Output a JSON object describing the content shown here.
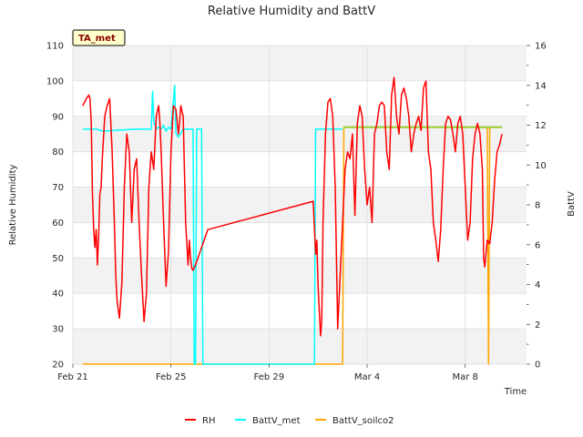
{
  "chart_data": {
    "type": "line",
    "title": "Relative Humidity and BattV",
    "badge": "TA_met",
    "xlabel": "Time",
    "ylabel": "Relative Humidity",
    "y2label": "BattV",
    "xlim": [
      0,
      18.5
    ],
    "ylim": [
      20,
      110
    ],
    "y2lim": [
      0,
      16
    ],
    "x_ticks": [
      {
        "value": 0,
        "label": "Feb 21"
      },
      {
        "value": 4,
        "label": "Feb 25"
      },
      {
        "value": 8,
        "label": "Feb 29"
      },
      {
        "value": 12,
        "label": "Mar 4"
      },
      {
        "value": 16,
        "label": "Mar 8"
      }
    ],
    "y_ticks": [
      20,
      30,
      40,
      50,
      60,
      70,
      80,
      90,
      100,
      110
    ],
    "y2_ticks": [
      0,
      2,
      4,
      6,
      8,
      10,
      12,
      14,
      16
    ],
    "legend_position": "bottom-center",
    "colors": {
      "RH": "#ff0000",
      "BattV_met": "#00ffff",
      "BattV_soilco2": "#ffa500",
      "BattV_extra": "#9acd32",
      "band": "#f2f2f2",
      "grid": "#dcdcdc"
    },
    "series": [
      {
        "name": "RH",
        "axis": "left",
        "x": [
          0.4,
          0.55,
          0.65,
          0.7,
          0.75,
          0.8,
          0.85,
          0.9,
          0.95,
          1.0,
          1.05,
          1.1,
          1.15,
          1.2,
          1.3,
          1.4,
          1.5,
          1.6,
          1.7,
          1.75,
          1.8,
          1.9,
          2.0,
          2.1,
          2.2,
          2.3,
          2.4,
          2.5,
          2.6,
          2.7,
          2.8,
          2.9,
          3.0,
          3.05,
          3.1,
          3.2,
          3.3,
          3.4,
          3.5,
          3.55,
          3.6,
          3.7,
          3.8,
          3.9,
          4.0,
          4.1,
          4.2,
          4.3,
          4.35,
          4.4,
          4.5,
          4.6,
          4.7,
          4.75,
          4.8,
          4.85,
          4.9,
          5.0,
          5.1,
          5.2,
          5.3,
          5.4,
          5.5,
          9.8,
          9.9,
          9.95,
          10.0,
          10.1,
          10.15,
          10.2,
          10.3,
          10.4,
          10.5,
          10.6,
          10.7,
          10.8,
          10.9,
          11.0,
          11.1,
          11.2,
          11.3,
          11.4,
          11.5,
          11.6,
          11.7,
          11.8,
          11.9,
          12.0,
          12.1,
          12.2,
          12.3,
          12.4,
          12.5,
          12.6,
          12.7,
          12.8,
          12.9,
          13.0,
          13.1,
          13.2,
          13.3,
          13.4,
          13.5,
          13.6,
          13.7,
          13.8,
          13.9,
          14.0,
          14.1,
          14.2,
          14.3,
          14.4,
          14.5,
          14.6,
          14.7,
          14.8,
          14.9,
          15.0,
          15.1,
          15.2,
          15.3,
          15.4,
          15.5,
          15.6,
          15.7,
          15.8,
          15.9,
          16.0,
          16.1,
          16.2,
          16.3,
          16.4,
          16.5,
          16.6,
          16.7,
          16.75,
          16.8,
          16.9,
          17.0,
          17.1,
          17.2,
          17.3,
          17.4,
          17.5
        ],
        "y": [
          93,
          95,
          96,
          95,
          88,
          68,
          58,
          53,
          58,
          48,
          56,
          68,
          70,
          78,
          90,
          93,
          95,
          80,
          58,
          45,
          38,
          33,
          43,
          70,
          85,
          80,
          60,
          75,
          78,
          60,
          45,
          32,
          40,
          55,
          70,
          80,
          75,
          90,
          93,
          88,
          80,
          60,
          42,
          52,
          80,
          93,
          92,
          85,
          88,
          93,
          90,
          60,
          48,
          55,
          50,
          47,
          46.5,
          48,
          50,
          52,
          54,
          56,
          58,
          66,
          51,
          55,
          42,
          28,
          32,
          60,
          85,
          94,
          95,
          90,
          70,
          30,
          45,
          60,
          75,
          80,
          78,
          85,
          62,
          88,
          93,
          90,
          75,
          65,
          70,
          60,
          85,
          88,
          93,
          94,
          93,
          80,
          75,
          96,
          101,
          90,
          85,
          96,
          98,
          95,
          90,
          80,
          85,
          88,
          90,
          86,
          98,
          100,
          80,
          75,
          60,
          55,
          49,
          58,
          75,
          88,
          90,
          89,
          85,
          80,
          88,
          90,
          85,
          70,
          55,
          60,
          78,
          85,
          88,
          85,
          75,
          50,
          47.5,
          55,
          54,
          60,
          72,
          80,
          82,
          85
        ]
      },
      {
        "name": "BattV_met",
        "axis": "right",
        "x": [
          0.4,
          1.0,
          1.2,
          2.5,
          3.2,
          3.25,
          3.3,
          3.4,
          3.5,
          3.6,
          3.7,
          3.8,
          3.9,
          4.0,
          4.15,
          4.2,
          4.3,
          4.5,
          4.7,
          4.8,
          4.85,
          4.9,
          4.95,
          5.0,
          5.05,
          5.1,
          5.15,
          5.2,
          5.25,
          5.3,
          5.35,
          9.8,
          9.85,
          9.9,
          10.0,
          11.0
        ],
        "y": [
          11.8,
          11.8,
          11.7,
          11.8,
          11.8,
          13.7,
          12.2,
          11.8,
          11.9,
          11.8,
          12.0,
          11.7,
          11.9,
          11.8,
          14.0,
          11.6,
          11.4,
          11.8,
          11.8,
          11.8,
          11.8,
          11.8,
          0,
          0,
          11.8,
          11.8,
          11.8,
          11.8,
          11.8,
          0,
          0,
          0,
          0,
          11.8,
          11.8,
          11.8
        ]
      },
      {
        "name": "BattV_soilco2",
        "axis": "right",
        "x": [
          0.4,
          10.9,
          11.0,
          11.05,
          12.0,
          14.0,
          16.0,
          16.9,
          16.95,
          17.0,
          17.5
        ],
        "y": [
          0,
          0,
          0,
          11.9,
          11.9,
          11.9,
          11.9,
          11.9,
          0,
          11.9,
          11.9
        ]
      },
      {
        "name": "BattV_extra",
        "axis": "right",
        "x": [
          11.05,
          12.0,
          13.0,
          14.0,
          15.0,
          16.0,
          16.5,
          16.9,
          17.0,
          17.5
        ],
        "y": [
          11.9,
          11.9,
          11.9,
          11.9,
          11.9,
          11.9,
          11.9,
          11.9,
          11.9,
          11.9
        ]
      }
    ],
    "legend": [
      {
        "name": "RH",
        "color": "#ff0000"
      },
      {
        "name": "BattV_met",
        "color": "#00ffff"
      },
      {
        "name": "BattV_soilco2",
        "color": "#ffa500"
      }
    ]
  }
}
